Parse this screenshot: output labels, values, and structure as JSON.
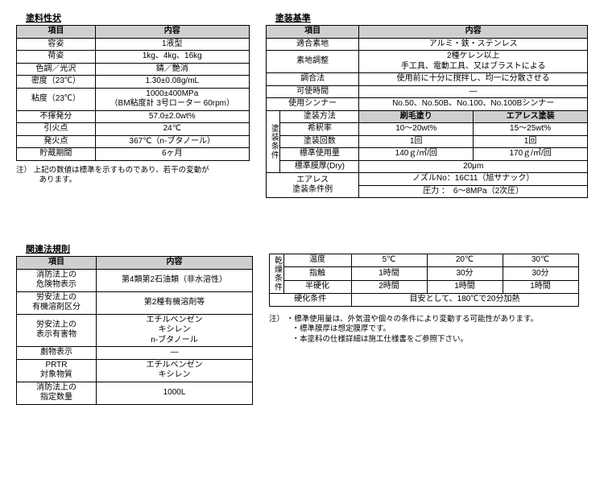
{
  "paint_props": {
    "title": "塗料性状",
    "head_item": "項目",
    "head_content": "内容",
    "rows": [
      {
        "k": "容姿",
        "v": "1液型"
      },
      {
        "k": "荷姿",
        "v": "1kg、4kg、16kg"
      },
      {
        "k": "色調／光沢",
        "v": "錆／艶消"
      },
      {
        "k": "密度（23℃）",
        "v": "1.30±0.08g/mL"
      },
      {
        "k": "粘度（23℃）",
        "v": "1000±400MPa\n（BM粘度計 3号ローター 60rpm）"
      },
      {
        "k": "不揮発分",
        "v": "57.0±2.0wt%"
      },
      {
        "k": "引火点",
        "v": "24℃"
      },
      {
        "k": "発火点",
        "v": "367℃（n-ブタノール）"
      },
      {
        "k": "貯蔵期間",
        "v": "6ヶ月"
      }
    ],
    "note": "注） 上記の数値は標準を示すものであり、若干の変動が\n　　　あります。",
    "col_item_w": 90,
    "col_val_w": 185
  },
  "coating_std": {
    "title": "塗装基準",
    "head_item": "項目",
    "head_content": "内容",
    "rows_top": [
      {
        "k": "適合素地",
        "v": "アルミ・鉄・ステンレス",
        "span": 2
      },
      {
        "k": "素地調整",
        "v": "2種ケレン以上\n手工具、電動工具、又はブラストによる",
        "span": 2
      },
      {
        "k": "調合法",
        "v": "使用前に十分に撹拌し、均一に分散させる",
        "span": 2
      },
      {
        "k": "可使時間",
        "v": "―",
        "span": 2
      },
      {
        "k": "使用シンナー",
        "v": "No.50、No.50B、No.100、No.100Bシンナー",
        "span": 2
      }
    ],
    "cond_label": "塗装条件",
    "cond_method_k": "塗装方法",
    "cond_method_v1": "刷毛塗り",
    "cond_method_v2": "エアレス塗装",
    "cond_rows": [
      {
        "k": "希釈率",
        "v1": "10～20wt%",
        "v2": "15～25wt%"
      },
      {
        "k": "塗装回数",
        "v1": "1回",
        "v2": "1回"
      },
      {
        "k": "標準使用量",
        "v1": "140ｇ/㎡/回",
        "v2": "170ｇ/㎡/回"
      }
    ],
    "dry_k": "標準膜厚(Dry)",
    "dry_v": "20μm",
    "airless_k": "エアレス\n塗装条件例",
    "airless_v1": "ノズルNo：16C11（旭サナック）",
    "airless_v2": "圧力 ：　6～8MPa（2次圧）",
    "col_item_w": 90,
    "col_v1_w": 135,
    "col_v2_w": 135
  },
  "laws": {
    "title": "関連法規則",
    "head_item": "項目",
    "head_content": "内容",
    "rows": [
      {
        "k": "消防法上の\n危険物表示",
        "v": "第4類第2石油類（非水溶性）"
      },
      {
        "k": "労安法上の\n有機溶剤区分",
        "v": "第2種有機溶剤等"
      },
      {
        "k": "労安法上の\n表示有害物",
        "v": "エチルベンゼン\nキシレン\nn-ブタノール"
      },
      {
        "k": "劇物表示",
        "v": "―"
      },
      {
        "k": "PRTR\n対象物質",
        "v": "エチルベンゼン\nキシレン"
      },
      {
        "k": "消防法上の\n指定数量",
        "v": "1000L"
      }
    ],
    "col_item_w": 90,
    "col_val_w": 185
  },
  "drying": {
    "label": "乾燥条件",
    "head_temp": "温度",
    "temps": [
      "5℃",
      "20℃",
      "30℃"
    ],
    "rows": [
      {
        "k": "指触",
        "v": [
          "1時間",
          "30分",
          "30分"
        ]
      },
      {
        "k": "半硬化",
        "v": [
          "2時間",
          "1時間",
          "1時間"
        ]
      }
    ],
    "cure_k": "硬化条件",
    "cure_v": "目安として、180℃で20分加熱",
    "note": "注） ・標準使用量は、外気温や個々の条件により変動する可能性があります。\n　　　・標準膜厚は想定膜厚です。\n　　　・本塗料の仕様詳細は施工仕様書をご参照下さい。",
    "col_k_w": 75,
    "col_v_w": 85
  }
}
